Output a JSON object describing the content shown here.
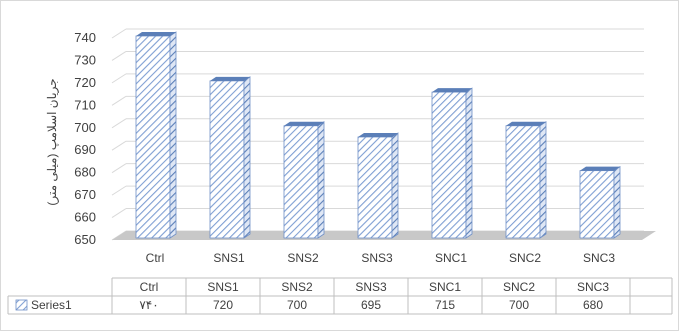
{
  "chart_data": {
    "type": "bar",
    "title": "",
    "xlabel": "",
    "ylabel": "جریان اسلامپ (میلی متر)",
    "categories": [
      "Ctrl",
      "SNS1",
      "SNS2",
      "SNS3",
      "SNC1",
      "SNC2",
      "SNC3"
    ],
    "series": [
      {
        "name": "Series1",
        "values": [
          740,
          720,
          700,
          695,
          715,
          700,
          680
        ]
      }
    ],
    "table_values": [
      "۷۴۰",
      "720",
      "700",
      "695",
      "715",
      "700",
      "680"
    ],
    "ylim": [
      650,
      740
    ],
    "yticks": [
      650,
      660,
      670,
      680,
      690,
      700,
      710,
      720,
      730,
      740
    ],
    "grid": true,
    "legend": "data-table",
    "colors": {
      "bar_stripe": "#7f9fd3",
      "bar_fill": "#ffffff",
      "bar_top": "#5b7fb8",
      "floor": "#c8c8c8",
      "grid": "#d9d9d9"
    }
  }
}
